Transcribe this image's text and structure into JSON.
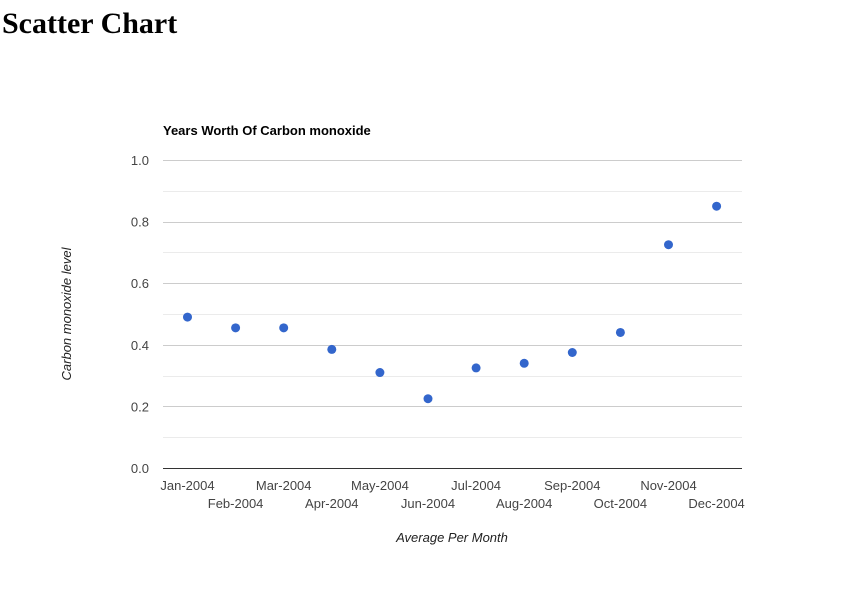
{
  "page": {
    "heading": "Scatter Chart"
  },
  "chart_data": {
    "type": "scatter",
    "title": "Years Worth Of Carbon monoxide",
    "xlabel": "Average Per Month",
    "ylabel": "Carbon monoxide level",
    "categories": [
      "Jan-2004",
      "Feb-2004",
      "Mar-2004",
      "Apr-2004",
      "May-2004",
      "Jun-2004",
      "Jul-2004",
      "Aug-2004",
      "Sep-2004",
      "Oct-2004",
      "Nov-2004",
      "Dec-2004"
    ],
    "series": [
      {
        "values": [
          0.49,
          0.455,
          0.455,
          0.385,
          0.31,
          0.225,
          0.325,
          0.34,
          0.375,
          0.44,
          0.725,
          0.85
        ]
      }
    ],
    "ylim": [
      0,
      1
    ],
    "yticks": [
      0,
      0.2,
      0.4,
      0.6,
      0.8,
      1
    ],
    "ytick_labels": [
      "0.0",
      "0.2",
      "0.4",
      "0.6",
      "0.8",
      "1.0"
    ],
    "grid": true,
    "minor_grid": true,
    "legend": "none",
    "colors": {
      "point": "#3366cc",
      "grid": "#cccccc",
      "minor_grid": "#ebebeb",
      "baseline": "#333333"
    }
  }
}
